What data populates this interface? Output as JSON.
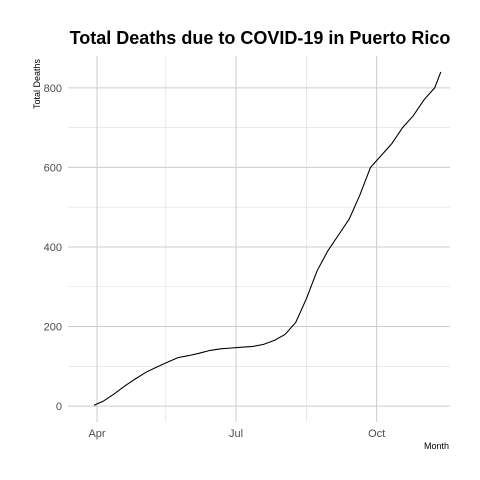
{
  "chart_data": {
    "type": "line",
    "title": "Total Deaths due to COVID-19 in Puerto Rico",
    "xlabel": "Month",
    "ylabel": "Total Deaths",
    "x_ticks": [
      "Apr",
      "Jul",
      "Oct"
    ],
    "y_ticks": [
      0,
      200,
      400,
      600,
      800
    ],
    "ylim": [
      -40,
      880
    ],
    "xlim": [
      "2020-03-13",
      "2020-11-18"
    ],
    "grid": true,
    "legend": "none",
    "series": [
      {
        "x": [
          "2020-03-30",
          "2020-04-05",
          "2020-04-12",
          "2020-04-19",
          "2020-04-26",
          "2020-05-03",
          "2020-05-10",
          "2020-05-17",
          "2020-05-24",
          "2020-05-31",
          "2020-06-07",
          "2020-06-14",
          "2020-06-21",
          "2020-06-28",
          "2020-07-05",
          "2020-07-12",
          "2020-07-19",
          "2020-07-26",
          "2020-08-02",
          "2020-08-09",
          "2020-08-16",
          "2020-08-23",
          "2020-08-30",
          "2020-09-06",
          "2020-09-13",
          "2020-09-20",
          "2020-09-27",
          "2020-10-04",
          "2020-10-11",
          "2020-10-18",
          "2020-10-25",
          "2020-11-01",
          "2020-11-08",
          "2020-11-12"
        ],
        "y": [
          2,
          12,
          30,
          50,
          68,
          85,
          98,
          110,
          122,
          127,
          133,
          140,
          144,
          146,
          148,
          150,
          155,
          165,
          180,
          210,
          270,
          340,
          390,
          430,
          470,
          530,
          600,
          630,
          660,
          700,
          730,
          770,
          800,
          840
        ]
      }
    ]
  }
}
